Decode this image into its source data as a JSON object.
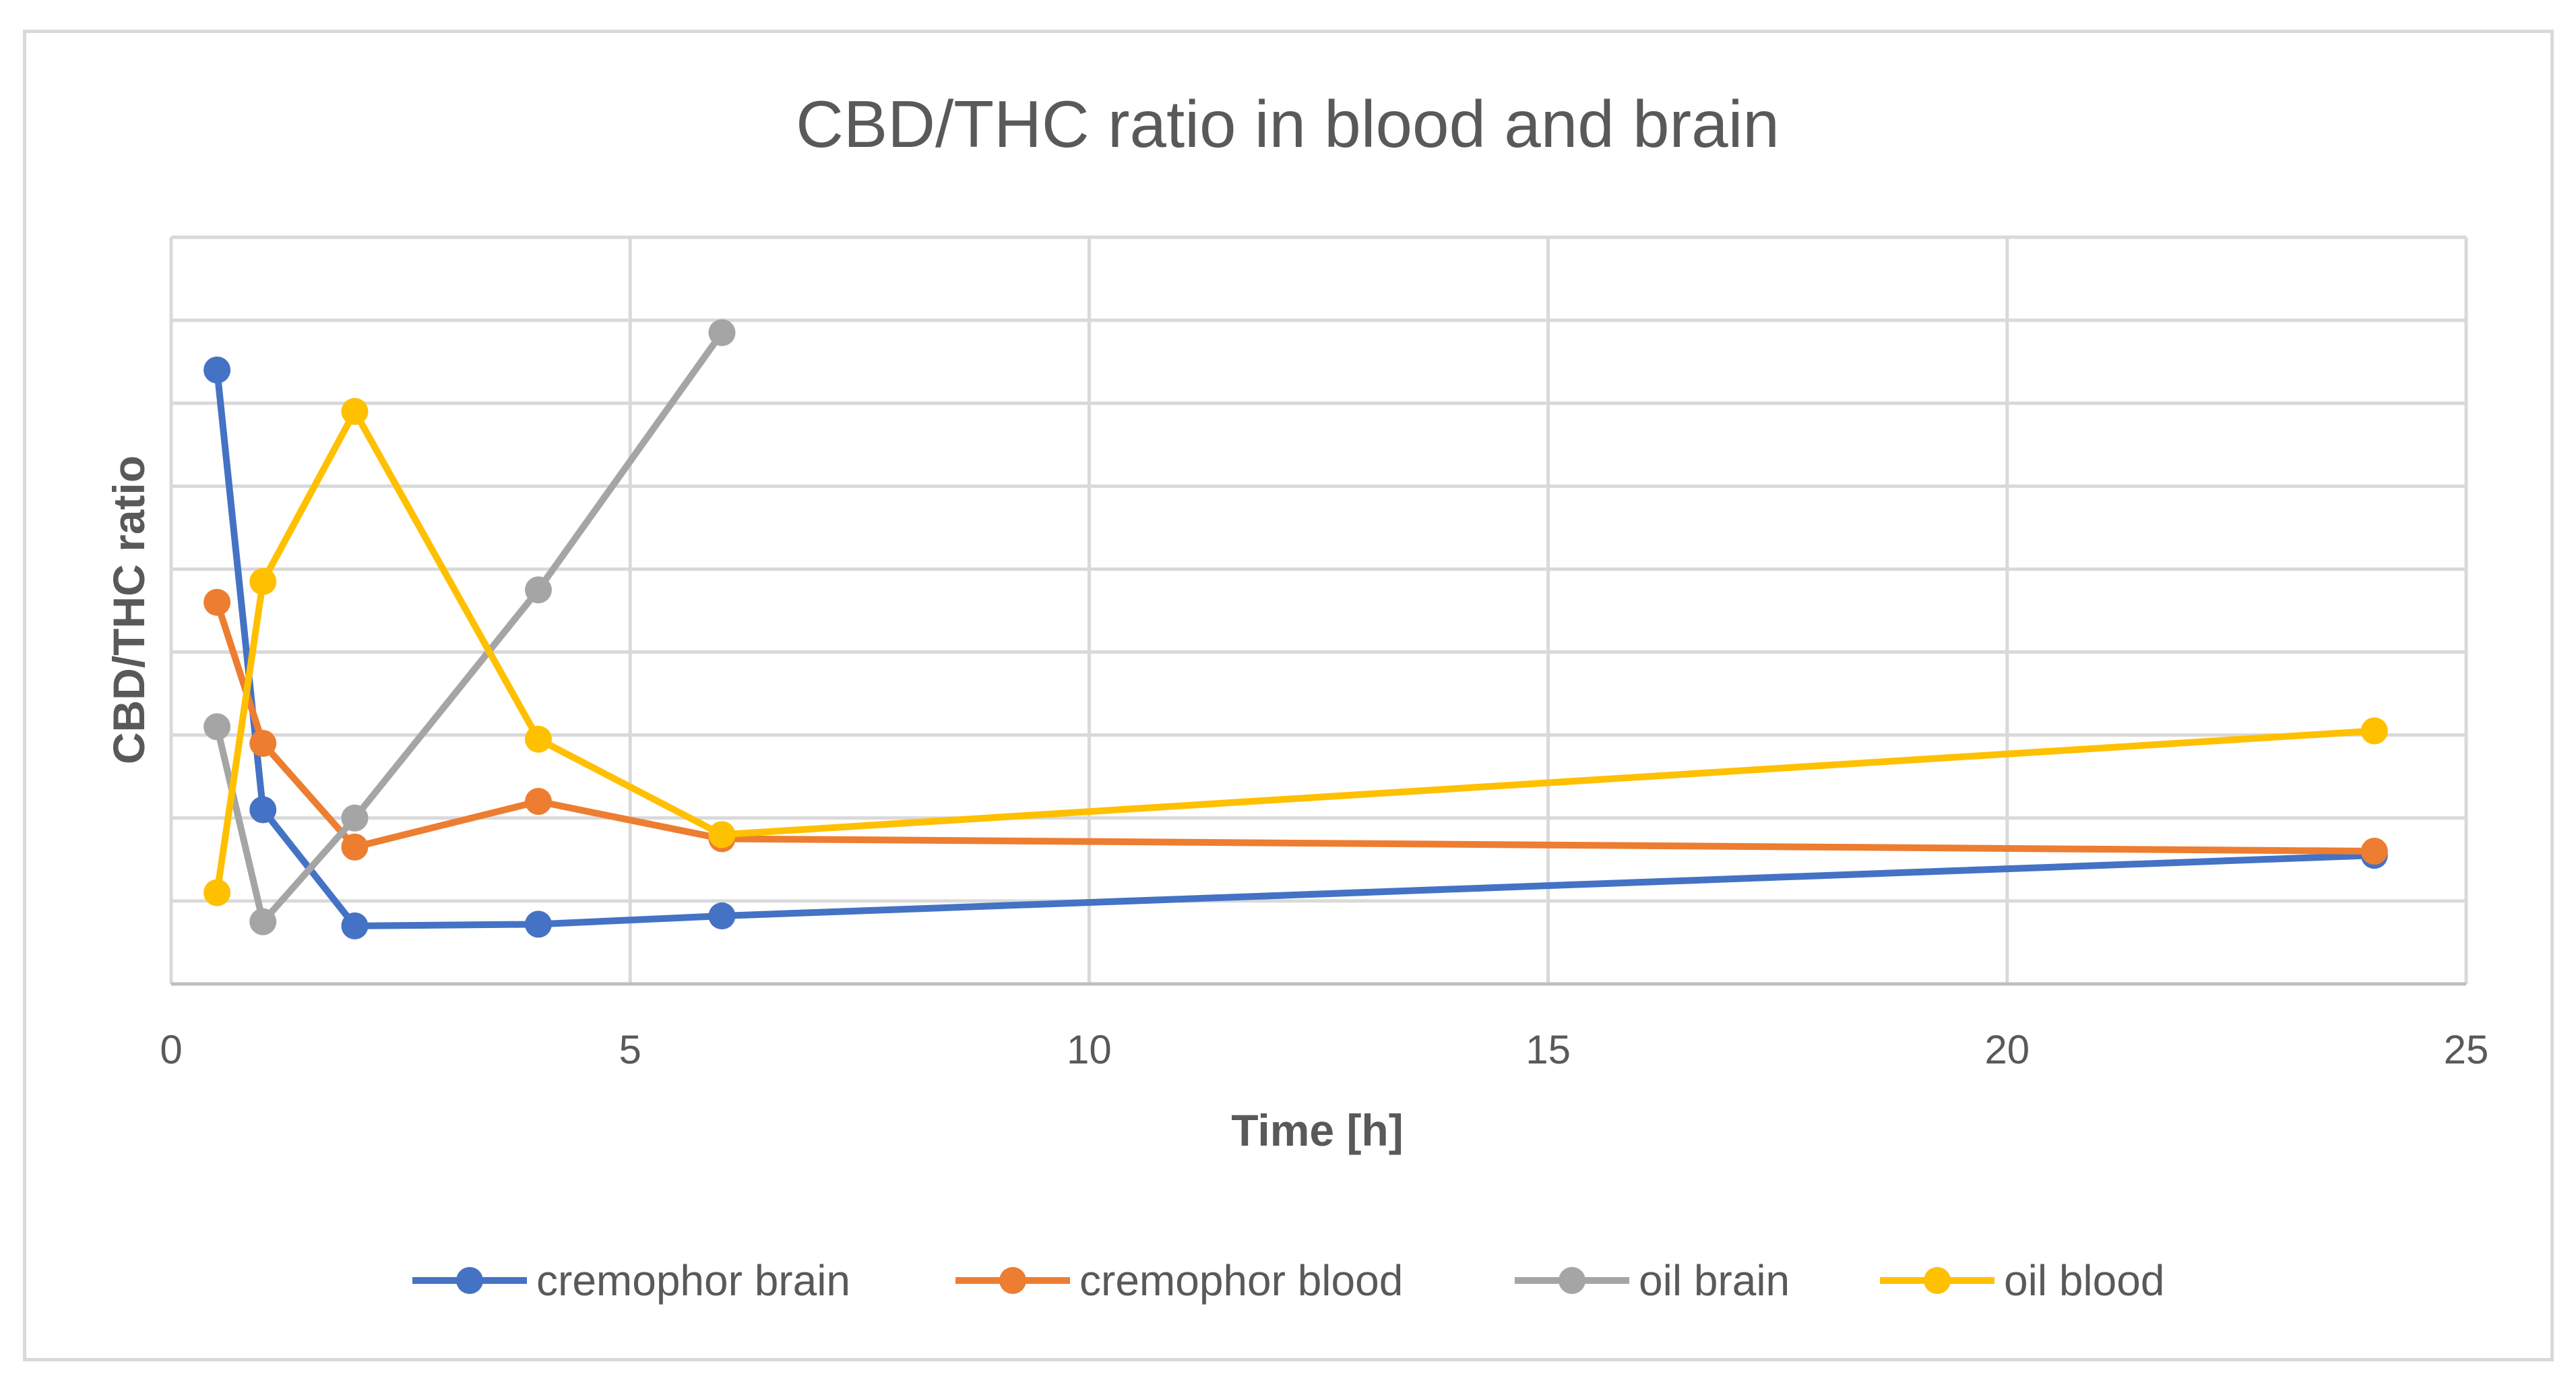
{
  "chart_data": {
    "type": "line",
    "title": "CBD/THC ratio in blood and brain",
    "xlabel": "Time [h]",
    "ylabel": "CBD/THC ratio",
    "xlim": [
      0,
      25
    ],
    "xticks": [
      0,
      5,
      10,
      15,
      20,
      25
    ],
    "xtick_labels": [
      "0",
      "5",
      "10",
      "15",
      "20",
      "25"
    ],
    "ylim": [
      0,
      9
    ],
    "y_gridlines": [
      0,
      1,
      2,
      3,
      4,
      5,
      6,
      7,
      8,
      9
    ],
    "y_tick_labels_shown": false,
    "x_gridlines": true,
    "legend_position": "bottom",
    "series": [
      {
        "name": "cremophor brain",
        "color": "#4472c4",
        "x": [
          0.5,
          1,
          2,
          4,
          6,
          24
        ],
        "y": [
          7.4,
          2.1,
          0.7,
          0.72,
          0.82,
          1.55
        ]
      },
      {
        "name": "cremophor blood",
        "color": "#ed7d31",
        "x": [
          0.5,
          1,
          2,
          4,
          6,
          24
        ],
        "y": [
          4.6,
          2.9,
          1.65,
          2.2,
          1.75,
          1.6
        ]
      },
      {
        "name": "oil brain",
        "color": "#a5a5a5",
        "x": [
          0.5,
          1,
          2,
          4,
          6
        ],
        "y": [
          3.1,
          0.75,
          2.0,
          4.75,
          7.85
        ]
      },
      {
        "name": "oil blood",
        "color": "#ffc000",
        "x": [
          0.5,
          1,
          2,
          4,
          6,
          24
        ],
        "y": [
          1.1,
          4.85,
          6.9,
          2.95,
          1.8,
          3.05
        ]
      }
    ]
  }
}
